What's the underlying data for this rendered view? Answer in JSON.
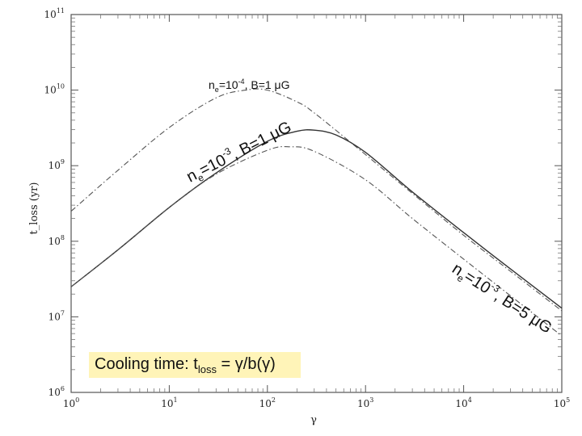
{
  "chart_data": {
    "type": "line",
    "xlabel": "γ",
    "ylabel": "t_loss (yr)",
    "xscale": "log",
    "yscale": "log",
    "xlim": [
      1,
      100000
    ],
    "ylim": [
      1000000,
      100000000000
    ],
    "x_ticks": [
      {
        "base": "10",
        "exp": "0"
      },
      {
        "base": "10",
        "exp": "1"
      },
      {
        "base": "10",
        "exp": "2"
      },
      {
        "base": "10",
        "exp": "3"
      },
      {
        "base": "10",
        "exp": "4"
      },
      {
        "base": "10",
        "exp": "5"
      }
    ],
    "y_ticks": [
      {
        "base": "10",
        "exp": "6"
      },
      {
        "base": "10",
        "exp": "7"
      },
      {
        "base": "10",
        "exp": "8"
      },
      {
        "base": "10",
        "exp": "9"
      },
      {
        "base": "10",
        "exp": "10"
      },
      {
        "base": "10",
        "exp": "11"
      }
    ],
    "grid": false,
    "series": [
      {
        "name": "ne=10-4, B=1 μG",
        "style": "dash-dot",
        "x": [
          1,
          3,
          10,
          30,
          60,
          100,
          200,
          300,
          1000,
          3000,
          10000,
          30000,
          100000
        ],
        "y": [
          250000000,
          870000000,
          3200000000,
          7900000000,
          10000000000,
          10000000000,
          7000000000,
          5000000000,
          1400000000,
          430000000,
          120000000,
          40000000,
          12000000
        ]
      },
      {
        "name": "ne=10-3, B=1 μG",
        "style": "solid",
        "x": [
          1,
          3,
          10,
          30,
          100,
          200,
          300,
          500,
          1000,
          3000,
          10000,
          30000,
          100000
        ],
        "y": [
          25000000,
          77000000,
          280000000,
          800000000,
          2100000000,
          2850000000,
          2950000000,
          2550000000,
          1500000000,
          450000000,
          130000000,
          43000000,
          13000000
        ]
      },
      {
        "name": "ne=10-3, B=5 μG",
        "style": "dash-dot",
        "x": [
          1,
          3,
          10,
          30,
          100,
          170,
          300,
          1000,
          3000,
          10000,
          30000,
          100000
        ],
        "y": [
          25000000,
          77000000,
          280000000,
          770000000,
          1600000000,
          1780000000,
          1550000000,
          650000000,
          200000000,
          58000000,
          19000000,
          5600000
        ]
      }
    ],
    "annotations": {
      "top": {
        "n": "n",
        "e": "e",
        "rest": "=10",
        "sup": "-4",
        "tail": ", B=1 μG"
      },
      "middle": {
        "n": "n",
        "e": "e",
        "rest": "=10",
        "sup": "-3",
        "tail": ", B=1 μG"
      },
      "right": {
        "n": "n",
        "e": "e",
        "rest": "=10",
        "sup": "-3",
        "tail": ", B=5 μG"
      }
    },
    "legend_box": {
      "prefix": "Cooling time:  t",
      "sub": "loss",
      "formula": " = γ/b(γ)"
    }
  }
}
